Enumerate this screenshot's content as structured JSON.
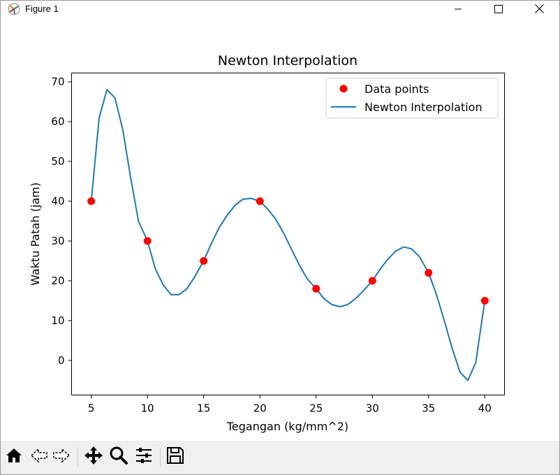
{
  "window": {
    "title": "Figure 1"
  },
  "icons": {
    "app": "matplotlib-figure-icon",
    "minimize": "minimize-icon",
    "maximize": "maximize-icon",
    "close": "close-icon"
  },
  "toolbar": {
    "buttons": [
      {
        "name": "home",
        "icon": "home-icon"
      },
      {
        "name": "back",
        "icon": "back-arrow-icon"
      },
      {
        "name": "forward",
        "icon": "forward-arrow-icon"
      },
      {
        "name": "pan",
        "icon": "move-icon"
      },
      {
        "name": "zoom",
        "icon": "zoom-icon"
      },
      {
        "name": "configure",
        "icon": "sliders-icon"
      },
      {
        "name": "save",
        "icon": "save-icon"
      }
    ]
  },
  "chart_data": {
    "type": "scatter",
    "title": "Newton Interpolation",
    "xlabel": "Tegangan (kg/mm^2)",
    "ylabel": "Waktu Patah (jam)",
    "xlim": [
      3.25,
      41.75
    ],
    "ylim": [
      -8.7,
      72.2
    ],
    "xticks": [
      5,
      10,
      15,
      20,
      25,
      30,
      35,
      40
    ],
    "yticks": [
      0,
      10,
      20,
      30,
      40,
      50,
      60,
      70
    ],
    "grid": false,
    "legend_position": "top-right",
    "series": [
      {
        "name": "Data points",
        "kind": "scatter",
        "color": "#ff0000",
        "x": [
          5,
          10,
          15,
          20,
          25,
          30,
          35,
          40
        ],
        "y": [
          40,
          30,
          25,
          40,
          18,
          20,
          22,
          15
        ]
      },
      {
        "name": "Newton Interpolation",
        "kind": "line",
        "color": "#1f77b4",
        "x": [
          5,
          5.7,
          6.4,
          7.1,
          7.8,
          8.5,
          9.2,
          10,
          10.7,
          11.4,
          12.1,
          12.8,
          13.5,
          14.2,
          15,
          15.7,
          16.4,
          17.1,
          17.8,
          18.5,
          19.2,
          20,
          20.7,
          21.4,
          22.1,
          22.8,
          23.5,
          24.2,
          25,
          25.7,
          26.4,
          27.1,
          27.8,
          28.5,
          29.2,
          30,
          30.7,
          31.4,
          32.1,
          32.8,
          33.5,
          34.2,
          35,
          35.7,
          36.4,
          37.1,
          37.8,
          38.5,
          39.2,
          40
        ],
        "y": [
          40,
          61,
          68,
          66,
          58,
          46,
          35,
          30,
          23,
          19,
          16.5,
          16.5,
          18,
          21,
          25,
          29.5,
          33.5,
          36.5,
          39,
          40.5,
          40.7,
          40,
          38,
          35.5,
          32,
          28,
          24,
          20.5,
          18,
          15.5,
          14,
          13.5,
          14,
          15.5,
          17.5,
          20,
          23,
          25.5,
          27.5,
          28.5,
          28,
          26,
          22,
          16.5,
          10,
          3,
          -3,
          -5,
          -0.5,
          15
        ]
      }
    ]
  }
}
